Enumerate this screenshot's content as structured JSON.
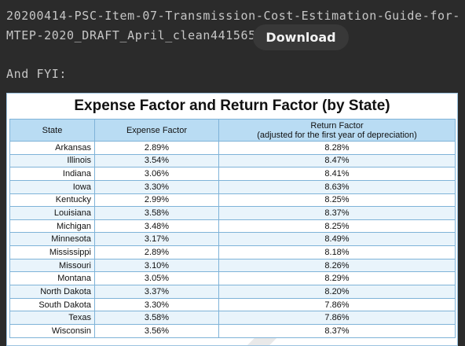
{
  "post": {
    "filename": "20200414-PSC-Item-07-Transmission-Cost-Estimation-Guide-for-MTEP-2020_DRAFT_April_clean441565",
    "download_label": "Download",
    "fyi_text": "And FYI:"
  },
  "table": {
    "title": "Expense Factor and Return Factor (by State)",
    "headers": {
      "state": "State",
      "expense": "Expense Factor",
      "return_line1": "Return Factor",
      "return_line2": "(adjusted for the first year of depreciation)"
    },
    "rows": [
      {
        "state": "Arkansas",
        "expense": "2.89%",
        "return": "8.28%"
      },
      {
        "state": "Illinois",
        "expense": "3.54%",
        "return": "8.47%"
      },
      {
        "state": "Indiana",
        "expense": "3.06%",
        "return": "8.41%"
      },
      {
        "state": "Iowa",
        "expense": "3.30%",
        "return": "8.63%"
      },
      {
        "state": "Kentucky",
        "expense": "2.99%",
        "return": "8.25%"
      },
      {
        "state": "Louisiana",
        "expense": "3.58%",
        "return": "8.37%"
      },
      {
        "state": "Michigan",
        "expense": "3.48%",
        "return": "8.25%"
      },
      {
        "state": "Minnesota",
        "expense": "3.17%",
        "return": "8.49%"
      },
      {
        "state": "Mississippi",
        "expense": "2.89%",
        "return": "8.18%"
      },
      {
        "state": "Missouri",
        "expense": "3.10%",
        "return": "8.26%"
      },
      {
        "state": "Montana",
        "expense": "3.05%",
        "return": "8.29%"
      },
      {
        "state": "North Dakota",
        "expense": "3.37%",
        "return": "8.20%"
      },
      {
        "state": "South Dakota",
        "expense": "3.30%",
        "return": "7.86%"
      },
      {
        "state": "Texas",
        "expense": "3.58%",
        "return": "7.86%"
      },
      {
        "state": "Wisconsin",
        "expense": "3.56%",
        "return": "8.37%"
      }
    ]
  },
  "colors": {
    "page_bg": "#2b2b2b",
    "header_bg": "#b9dcf3",
    "grid": "#7fb3d8",
    "alt_row": "#e9f4fb"
  }
}
